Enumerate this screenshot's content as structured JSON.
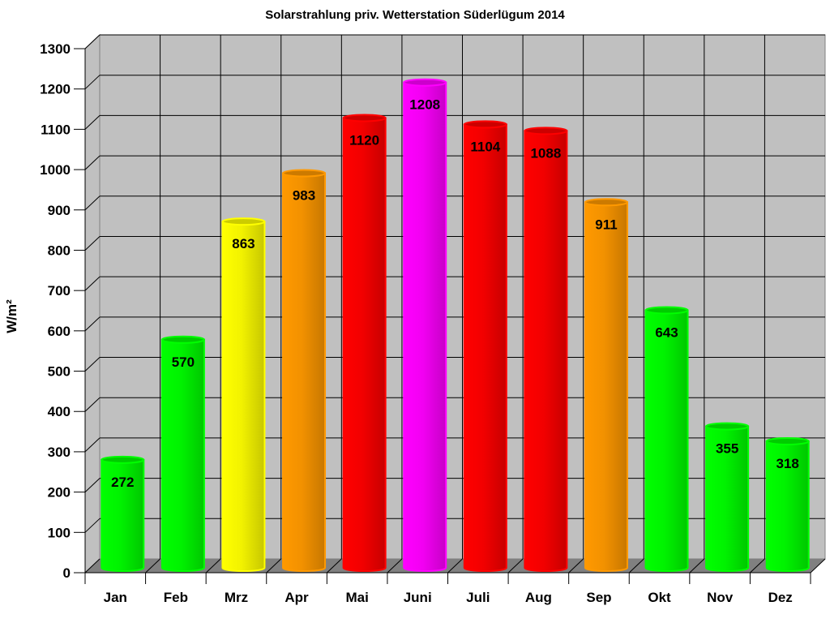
{
  "chart_data": {
    "type": "bar",
    "title": "Solarstrahlung priv. Wetterstation Süderlügum 2014",
    "xlabel": "",
    "ylabel": "W/m²",
    "ylim": [
      0,
      1300
    ],
    "yticks": [
      0,
      100,
      200,
      300,
      400,
      500,
      600,
      700,
      800,
      900,
      1000,
      1100,
      1200,
      1300
    ],
    "grid": true,
    "style": "3d-cylinder",
    "categories": [
      "Jan",
      "Feb",
      "Mrz",
      "Apr",
      "Mai",
      "Juni",
      "Juli",
      "Aug",
      "Sep",
      "Okt",
      "Nov",
      "Dez"
    ],
    "values": [
      272,
      570,
      863,
      983,
      1120,
      1208,
      1104,
      1088,
      911,
      643,
      355,
      318
    ],
    "colors": [
      "#00ff00",
      "#00ff00",
      "#ffff00",
      "#ff9900",
      "#ff0000",
      "#ff00ff",
      "#ff0000",
      "#ff0000",
      "#ff9900",
      "#00ff00",
      "#00ff00",
      "#00ff00"
    ],
    "data_labels": true
  }
}
